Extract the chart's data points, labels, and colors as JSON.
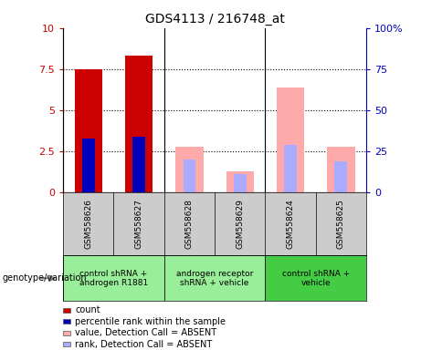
{
  "title": "GDS4113 / 216748_at",
  "samples": [
    "GSM558626",
    "GSM558627",
    "GSM558628",
    "GSM558629",
    "GSM558624",
    "GSM558625"
  ],
  "count_values": [
    7.5,
    8.3,
    null,
    null,
    null,
    null
  ],
  "percentile_values": [
    33,
    34,
    null,
    null,
    null,
    null
  ],
  "absent_value_values": [
    null,
    null,
    2.8,
    1.3,
    6.4,
    2.8
  ],
  "absent_rank_values": [
    null,
    null,
    20,
    11,
    29,
    19
  ],
  "ylim_left": [
    0,
    10
  ],
  "ylim_right": [
    0,
    100
  ],
  "yticks_left": [
    0,
    2.5,
    5.0,
    7.5,
    10
  ],
  "yticks_right": [
    0,
    25,
    50,
    75,
    100
  ],
  "ytick_labels_left": [
    "0",
    "2.5",
    "5",
    "7.5",
    "10"
  ],
  "ytick_labels_right": [
    "0",
    "25",
    "50",
    "75",
    "100%"
  ],
  "bar_width": 0.55,
  "thin_bar_width": 0.25,
  "count_color": "#cc0000",
  "percentile_color": "#0000bb",
  "absent_value_color": "#ffaaaa",
  "absent_rank_color": "#aaaaff",
  "plot_bg": "#ffffff",
  "sample_area_bg": "#cccccc",
  "group_info": [
    {
      "idx": [
        0,
        1
      ],
      "label": "control shRNA +\nandrogen R1881",
      "color": "#99ee99"
    },
    {
      "idx": [
        2,
        3
      ],
      "label": "androgen receptor\nshRNA + vehicle",
      "color": "#99ee99"
    },
    {
      "idx": [
        4,
        5
      ],
      "label": "control shRNA +\nvehicle",
      "color": "#44cc44"
    }
  ],
  "legend_items": [
    {
      "label": "count",
      "color": "#cc0000"
    },
    {
      "label": "percentile rank within the sample",
      "color": "#0000bb"
    },
    {
      "label": "value, Detection Call = ABSENT",
      "color": "#ffaaaa"
    },
    {
      "label": "rank, Detection Call = ABSENT",
      "color": "#aaaaff"
    }
  ],
  "genotype_label": "genotype/variation"
}
